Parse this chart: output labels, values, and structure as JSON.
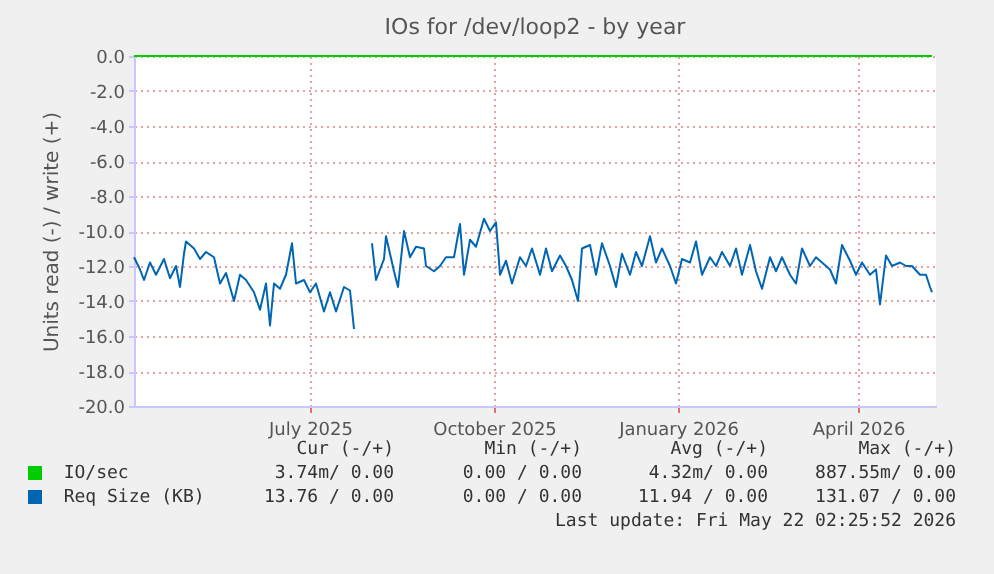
{
  "chart_data": {
    "type": "line",
    "title": "IOs for /dev/loop2 - by year",
    "ylabel": "Units read (-) / write (+)",
    "xlim": [
      "2025-04-04",
      "2026-05-10"
    ],
    "xticks": [
      {
        "value": "2025-07-01",
        "label": "July 2025"
      },
      {
        "value": "2025-10-01",
        "label": "October 2025"
      },
      {
        "value": "2026-01-01",
        "label": "January 2026"
      },
      {
        "value": "2026-04-01",
        "label": "April 2026"
      }
    ],
    "ylim": [
      -20,
      0
    ],
    "yticks": [
      {
        "value": 0,
        "label": "0.0"
      },
      {
        "value": -2,
        "label": "-2.0"
      },
      {
        "value": -4,
        "label": "-4.0"
      },
      {
        "value": -6,
        "label": "-6.0"
      },
      {
        "value": -8,
        "label": "-8.0"
      },
      {
        "value": -10,
        "label": "-10.0"
      },
      {
        "value": -12,
        "label": "-12.0"
      },
      {
        "value": -14,
        "label": "-14.0"
      },
      {
        "value": -16,
        "label": "-16.0"
      },
      {
        "value": -18,
        "label": "-18.0"
      },
      {
        "value": -20,
        "label": "-20.0"
      }
    ],
    "grid": true,
    "legend": "bottom",
    "series": [
      {
        "name": "IO/sec",
        "color": "#00cc00",
        "x": [
          "2025-04-04",
          "2026-05-08"
        ],
        "values": [
          0,
          0
        ]
      },
      {
        "name": "Req Size (KB)",
        "color": "#0066b3",
        "x": [
          "2025-04-04",
          "2025-04-07",
          "2025-04-09",
          "2025-04-12",
          "2025-04-15",
          "2025-04-19",
          "2025-04-22",
          "2025-04-25",
          "2025-04-27",
          "2025-04-29",
          "2025-04-30",
          "2025-05-04",
          "2025-05-07",
          "2025-05-10",
          "2025-05-14",
          "2025-05-17",
          "2025-05-20",
          "2025-05-24",
          "2025-05-27",
          "2025-05-30",
          "2025-06-03",
          "2025-06-06",
          "2025-06-09",
          "2025-06-11",
          "2025-06-13",
          "2025-06-16",
          "2025-06-19",
          "2025-06-22",
          "2025-06-24",
          "2025-06-28",
          "2025-07-01",
          "2025-07-04",
          "2025-07-08",
          "2025-07-11",
          "2025-07-14",
          "2025-07-18",
          "2025-07-21",
          "2025-07-23",
          "2025-07-27",
          "2025-08-01",
          "2025-08-03",
          "2025-08-07",
          "2025-08-08",
          "2025-08-12",
          "2025-08-14",
          "2025-08-17",
          "2025-08-20",
          "2025-08-23",
          "2025-08-27",
          "2025-08-28",
          "2025-09-01",
          "2025-09-04",
          "2025-09-07",
          "2025-09-11",
          "2025-09-14",
          "2025-09-16",
          "2025-09-19",
          "2025-09-22",
          "2025-09-26",
          "2025-09-29",
          "2025-10-02",
          "2025-10-04",
          "2025-10-07",
          "2025-10-10",
          "2025-10-14",
          "2025-10-17",
          "2025-10-20",
          "2025-10-24",
          "2025-10-27",
          "2025-10-30",
          "2025-11-03",
          "2025-11-06",
          "2025-11-09",
          "2025-11-12",
          "2025-11-14",
          "2025-11-18",
          "2025-11-21",
          "2025-11-24",
          "2025-11-28",
          "2025-12-01",
          "2025-12-04",
          "2025-12-08",
          "2025-12-11",
          "2025-12-14",
          "2025-12-18",
          "2025-12-21",
          "2025-12-24",
          "2025-12-28",
          "2025-12-31",
          "2026-01-03",
          "2026-01-07",
          "2026-01-10",
          "2026-01-13",
          "2026-01-17",
          "2026-01-20",
          "2026-01-23",
          "2026-01-27",
          "2026-01-30",
          "2026-02-02",
          "2026-02-06",
          "2026-02-09",
          "2026-02-12",
          "2026-02-16",
          "2026-02-19",
          "2026-02-22",
          "2026-02-26",
          "2026-03-01",
          "2026-03-04",
          "2026-03-08",
          "2026-03-11",
          "2026-03-14",
          "2026-03-18",
          "2026-03-21",
          "2026-03-24",
          "2026-03-28",
          "2026-03-31",
          "2026-04-03",
          "2026-04-07",
          "2026-04-10",
          "2026-04-12",
          "2026-04-15",
          "2026-04-18",
          "2026-04-22",
          "2026-04-25",
          "2026-04-28",
          "2026-05-02",
          "2026-05-05",
          "2026-05-07",
          "2026-05-08"
        ],
        "values": [
          -11.5,
          -12.2,
          -12.8,
          -11.8,
          -12.5,
          -11.6,
          -12.7,
          -12,
          -13.2,
          -11.3,
          -10.6,
          -11,
          -11.6,
          -11.2,
          -11.5,
          -13,
          -12.4,
          -14,
          -12.5,
          -12.8,
          -13.5,
          -14.5,
          -13,
          -15.4,
          -13,
          -13.3,
          -12.5,
          -10.7,
          -13,
          -12.8,
          -13.5,
          -13,
          -14.6,
          -13.5,
          -14.6,
          -13.2,
          -13.4,
          -15.6,
          null,
          -10.7,
          -12.8,
          -11.6,
          -10.3,
          -12.3,
          -13.2,
          -10,
          -11.5,
          -10.9,
          -11,
          -12,
          -12.3,
          -12,
          -11.5,
          -11.5,
          -9.6,
          -12.5,
          -10.5,
          -10.9,
          -9.3,
          -10,
          -9.5,
          -12.5,
          -11.7,
          -13,
          -11.5,
          -12,
          -11,
          -12.5,
          -11,
          -12.3,
          -11.4,
          -12,
          -12.8,
          -14,
          -11,
          -10.8,
          -12.5,
          -10.7,
          -12,
          -13.2,
          -11.3,
          -12.5,
          -11.2,
          -12,
          -10.3,
          -11.8,
          -11,
          -12,
          -13,
          -11.6,
          -11.8,
          -10.6,
          -12.5,
          -11.5,
          -12,
          -11.2,
          -12,
          -11,
          -12.5,
          -10.8,
          -12.3,
          -13.3,
          -11.5,
          -12.3,
          -11.5,
          -12.5,
          -13,
          -11,
          -12,
          -11.5,
          -11.8,
          -12.2,
          -13,
          -10.8,
          -11.7,
          -12.5,
          -11.8,
          -12.5,
          -12.2,
          -14.2,
          -11.4,
          -12,
          -11.8,
          -12,
          -12,
          -12.5,
          -12.5,
          -13.2,
          -13.5
        ]
      }
    ],
    "annotations": [
      "Cur (-/+)",
      "Min (-/+)",
      "Avg (-/+)",
      "Max (-/+)",
      "3.74m/ 0.00",
      "0.00 / 0.00",
      "4.32m/ 0.00",
      "887.55m/ 0.00",
      "13.76 / 0.00",
      "0.00 / 0.00",
      "11.94 / 0.00",
      "131.07 / 0.00",
      "Last update: Fri May 22 02:25:52 2026"
    ]
  }
}
